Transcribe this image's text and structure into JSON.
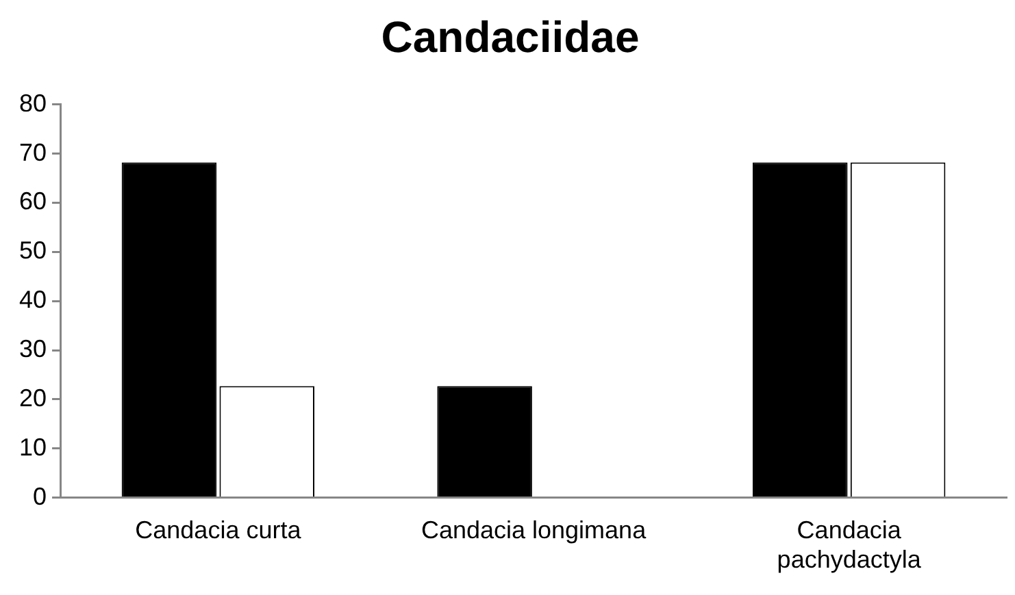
{
  "chart_data": {
    "type": "bar",
    "title": "Candaciidae",
    "categories": [
      "Candacia curta",
      "Candacia longimana",
      "Candacia pachydactyla"
    ],
    "series": [
      {
        "color": "#000000",
        "values": [
          68.2,
          22.7,
          68.2
        ]
      },
      {
        "color": "#ffffff",
        "values": [
          22.7,
          null,
          68.2
        ]
      }
    ],
    "ylim": [
      0,
      80
    ],
    "yticks": [
      0,
      10,
      20,
      30,
      40,
      50,
      60,
      70,
      80
    ],
    "grid": false,
    "legend": false
  }
}
